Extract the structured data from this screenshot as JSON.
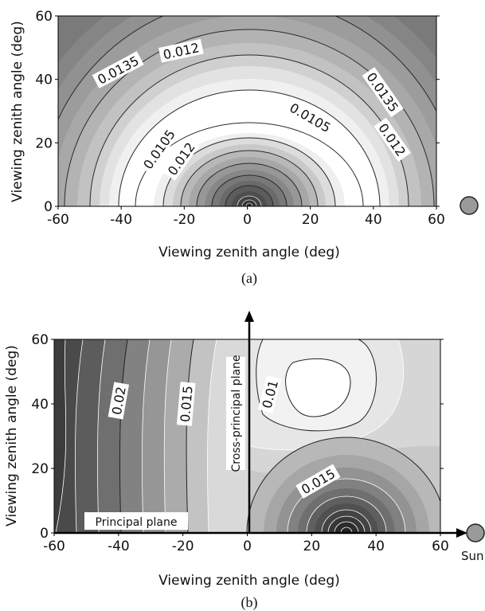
{
  "chart_data": [
    {
      "type": "contour",
      "panel_label": "(a)",
      "xlabel": "Viewing zenith angle (deg)",
      "ylabel": "Viewing zenith angle (deg)",
      "xlim": [
        -60,
        60
      ],
      "ylim": [
        0,
        60
      ],
      "x_ticks": [
        "-60",
        "-40",
        "-20",
        "0",
        "20",
        "40",
        "60"
      ],
      "y_ticks": [
        "0",
        "20",
        "40",
        "60"
      ],
      "contour_labels": [
        {
          "text": "0.0135",
          "x": -41,
          "y": 43,
          "rot": -28
        },
        {
          "text": "0.012",
          "x": -21,
          "y": 49,
          "rot": -12
        },
        {
          "text": "0.0135",
          "x": 43,
          "y": 36,
          "rot": 55
        },
        {
          "text": "0.012",
          "x": 46,
          "y": 21,
          "rot": 55
        },
        {
          "text": "0.0105",
          "x": 20,
          "y": 28,
          "rot": 30
        },
        {
          "text": "0.0105",
          "x": -28,
          "y": 18,
          "rot": -55
        },
        {
          "text": "0.012",
          "x": -21,
          "y": 15,
          "rot": -55
        }
      ],
      "sun_marker": true
    },
    {
      "type": "contour",
      "panel_label": "(b)",
      "xlabel": "Viewing zenith angle (deg)",
      "ylabel": "Viewing zenith angle (deg)",
      "xlim": [
        -60,
        60
      ],
      "ylim": [
        0,
        60
      ],
      "x_ticks": [
        "-60",
        "-40",
        "-20",
        "0",
        "20",
        "40",
        "60"
      ],
      "y_ticks": [
        "0",
        "20",
        "40",
        "60"
      ],
      "annotations": {
        "principal_plane": "Principal plane",
        "cross_principal_plane": "Cross-principal plane",
        "sun": "Sun"
      },
      "contour_labels": [
        {
          "text": "0.02",
          "x": -40,
          "y": 41,
          "rot": -80
        },
        {
          "text": "0.015",
          "x": -19,
          "y": 40,
          "rot": -85
        },
        {
          "text": "0.01",
          "x": 7,
          "y": 43,
          "rot": -75
        },
        {
          "text": "0.015",
          "x": 22,
          "y": 16,
          "rot": -30
        }
      ],
      "sun_marker": true
    }
  ]
}
